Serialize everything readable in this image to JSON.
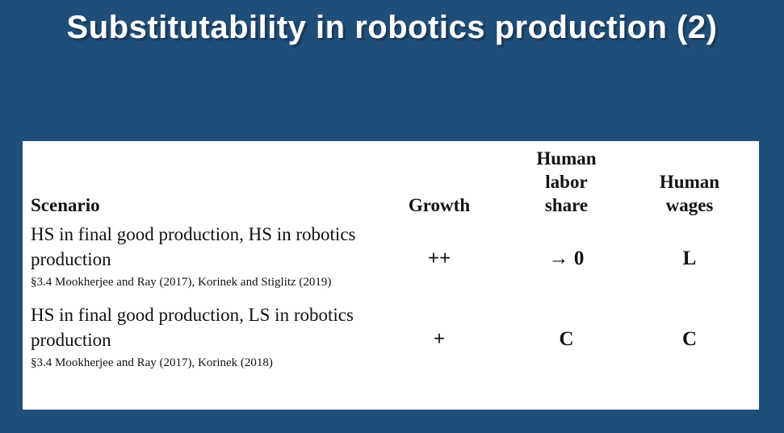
{
  "slide": {
    "title": "Substitutability in robotics production (2)",
    "background_color": "#1f4e79",
    "card_color": "#ffffff"
  },
  "table": {
    "headers": {
      "scenario": "Scenario",
      "growth": "Growth",
      "labor_share": "Human\nlabor\nshare",
      "wages": "Human\nwages"
    },
    "rows": [
      {
        "scenario": "HS in final good production, HS in robotics production",
        "growth": "++",
        "labor_share": "→ 0",
        "wages": "L",
        "footnote": "§3.4 Mookherjee and Ray (2017), Korinek and Stiglitz (2019)"
      },
      {
        "scenario": "HS in final good production, LS in robotics production",
        "growth": "+",
        "labor_share": "C",
        "wages": "C",
        "footnote": "§3.4 Mookherjee and Ray (2017), Korinek (2018)"
      }
    ]
  }
}
